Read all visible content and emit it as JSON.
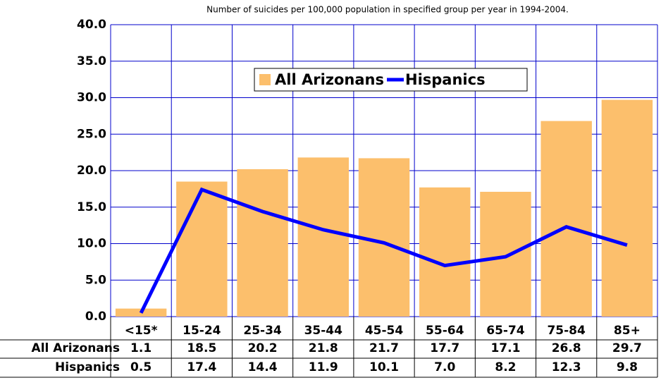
{
  "chart_data": {
    "type": "bar_line",
    "title": "Number of suicides per 100,000 population in specified group per year in 1994-2004.",
    "categories": [
      "<15*",
      "15-24",
      "25-34",
      "35-44",
      "45-54",
      "55-64",
      "65-74",
      "75-84",
      "85+"
    ],
    "series": [
      {
        "name": "All Arizonans",
        "type": "bar",
        "color": "#fcbf6c",
        "values": [
          1.1,
          18.5,
          20.2,
          21.8,
          21.7,
          17.7,
          17.1,
          26.8,
          29.7
        ],
        "value_labels": [
          "1.1",
          "18.5",
          "20.2",
          "21.8",
          "21.7",
          "17.7",
          "17.1",
          "26.8",
          "29.7"
        ]
      },
      {
        "name": "Hispanics",
        "type": "line",
        "color": "#0000ff",
        "values": [
          0.5,
          17.4,
          14.4,
          11.9,
          10.1,
          7.0,
          8.2,
          12.3,
          9.8
        ],
        "value_labels": [
          "0.5",
          "17.4",
          "14.4",
          "11.9",
          "10.1",
          "7.0",
          "8.2",
          "12.3",
          "9.8"
        ]
      }
    ],
    "ylim": [
      0,
      40
    ],
    "yticks": [
      {
        "value": 0,
        "label": "0.0"
      },
      {
        "value": 5,
        "label": "5.0"
      },
      {
        "value": 10,
        "label": "10.0"
      },
      {
        "value": 15,
        "label": "15.0"
      },
      {
        "value": 20,
        "label": "20.0"
      },
      {
        "value": 25,
        "label": "25.0"
      },
      {
        "value": 30,
        "label": "30.0"
      },
      {
        "value": 35,
        "label": "35.0"
      },
      {
        "value": 40,
        "label": "40.0"
      }
    ],
    "grid": true,
    "legend": "top"
  }
}
